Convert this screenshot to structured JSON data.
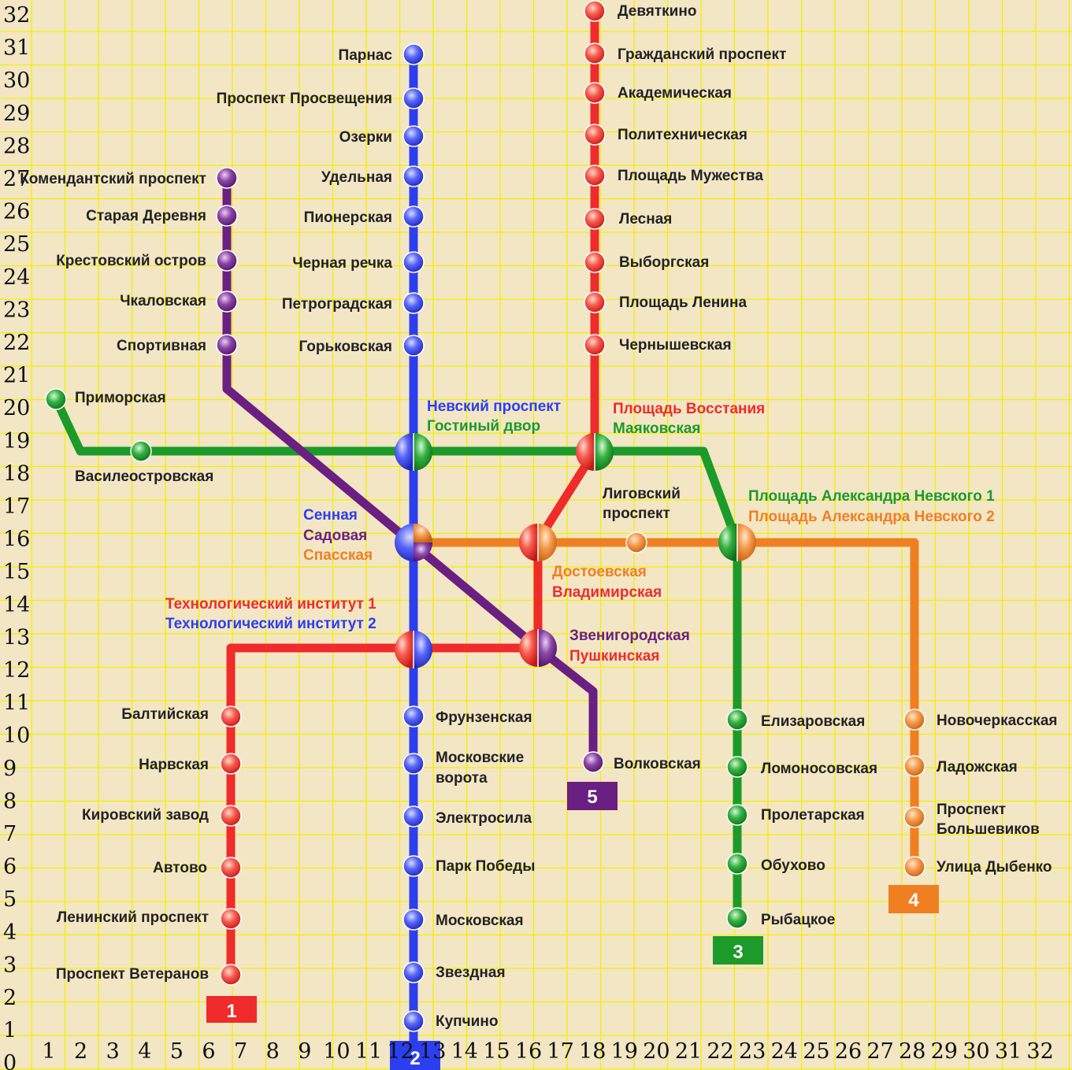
{
  "colors": {
    "background": "#f3e6c4",
    "grid": "#f2f000",
    "line1": "#ef2b2b",
    "line2": "#2b3ff0",
    "line3": "#1c9a2a",
    "line4": "#f07f22",
    "line5": "#6a1f82"
  },
  "grid": {
    "y_labels": [
      "32",
      "31",
      "30",
      "29",
      "28",
      "27",
      "26",
      "25",
      "24",
      "23",
      "22",
      "21",
      "20",
      "19",
      "18",
      "17",
      "16",
      "15",
      "14",
      "13",
      "12",
      "11",
      "10",
      "9",
      "8",
      "7",
      "6",
      "5",
      "4",
      "3",
      "2",
      "1",
      "0"
    ],
    "x_labels": [
      "1",
      "2",
      "3",
      "4",
      "5",
      "6",
      "7",
      "8",
      "9",
      "10",
      "11",
      "12",
      "13",
      "14",
      "15",
      "16",
      "17",
      "18",
      "19",
      "20",
      "21",
      "22",
      "23",
      "24",
      "25",
      "26",
      "27",
      "28",
      "29",
      "30",
      "31",
      "32"
    ]
  },
  "badges": {
    "line1": "1",
    "line2": "2",
    "line3": "3",
    "line4": "4",
    "line5": "5"
  },
  "stations": {
    "devyatkino": "Девяткино",
    "grazhdansky": "Гражданский проспект",
    "akademicheskaya": "Академическая",
    "politekh": "Политехническая",
    "muzhestva": "Площадь Мужества",
    "lesnaya": "Лесная",
    "vyborgskaya": "Выборгская",
    "lenina": "Площадь Ленина",
    "chernyshevskaya": "Чернышевская",
    "vosstaniya": "Площадь Восстания",
    "mayakovskaya": "Маяковская",
    "parnas": "Парнас",
    "prosvescheniya": "Проспект Просвещения",
    "ozerki": "Озерки",
    "udelnaya": "Удельная",
    "pionerskaya": "Пионерская",
    "chernaya": "Черная речка",
    "petrogradskaya": "Петроградская",
    "gorkovskaya": "Горьковская",
    "nevsky": "Невский проспект",
    "gostiny": "Гостиный двор",
    "komendantsky": "Комендантский проспект",
    "staraya": "Старая Деревня",
    "krestovsky": "Крестовский остров",
    "chkalovskaya": "Чкаловская",
    "sportivnaya": "Спортивная",
    "primorskaya": "Приморская",
    "vasileostrovskaya": "Василеостровская",
    "ligovsky1": "Лиговский",
    "ligovsky2": "проспект",
    "nevskogo1": "Площадь Александра Невского 1",
    "nevskogo2": "Площадь Александра Невского 2",
    "sennaya": "Сенная",
    "sadovaya": "Садовая",
    "spasskaya": "Спасская",
    "dostoevskaya": "Достоевская",
    "vladimirskaya": "Владимирская",
    "tech1": "Технологический институт 1",
    "tech2": "Технологический институт 2",
    "zvenigorodskaya": "Звенигородская",
    "pushkinskaya": "Пушкинская",
    "baltiyskaya": "Балтийская",
    "narvskaya": "Нарвская",
    "kirovsky": "Кировский завод",
    "avtovo": "Автово",
    "leninsky": "Ленинский проспект",
    "veteranov": "Проспект Ветеранов",
    "frunzenskaya": "Фрунзенская",
    "moskovskie1": "Московские",
    "moskovskie2": "ворота",
    "elektrosila": "Электросила",
    "park": "Парк Победы",
    "moskovskaya": "Московская",
    "zvezdnaya": "Звездная",
    "kupchino": "Купчино",
    "volkovskaya": "Волковская",
    "elizarovskaya": "Елизаровская",
    "lomonosovskaya": "Ломоносовская",
    "proletarskaya": "Пролетарская",
    "obukhovo": "Обухово",
    "rybatskoe": "Рыбацкое",
    "novocherkasskaya": "Новочеркасская",
    "ladozhskaya": "Ладожская",
    "bolshevikov1": "Проспект",
    "bolshevikov2": "Большевиков",
    "dybenko": "Улица Дыбенко"
  }
}
